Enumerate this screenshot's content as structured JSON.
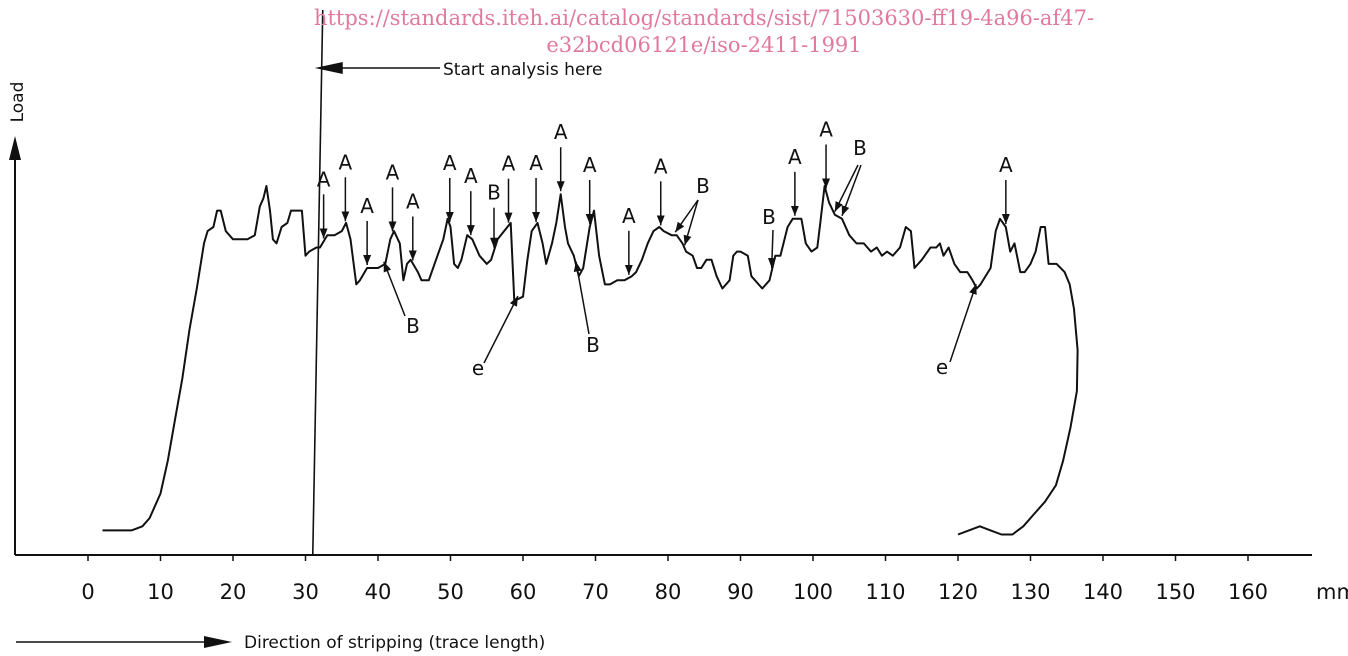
{
  "watermark": {
    "line1": "https://standards.iteh.ai/catalog/standards/sist/71503630-ff19-4a96-af47-",
    "line2": "e32bcd06121e/iso-2411-1991"
  },
  "colors": {
    "ink": "#111111",
    "watermark": "#e07a9a"
  },
  "chart_data": {
    "type": "line",
    "ylabel": "Load",
    "xlabel": "Direction of stripping (trace length)",
    "x_unit": "mm",
    "xlim": [
      -10,
      168
    ],
    "ylim": [
      0,
      100
    ],
    "x_ticks": [
      0,
      10,
      20,
      30,
      40,
      50,
      60,
      70,
      80,
      90,
      100,
      110,
      120,
      130,
      140,
      150,
      160
    ],
    "x_tick_labels": [
      "0",
      "10",
      "20",
      "30",
      "40",
      "50",
      "60",
      "70",
      "80",
      "90",
      "100",
      "110",
      "120",
      "130",
      "140",
      "150",
      "160"
    ],
    "grid": false,
    "start_line_x": 31,
    "start_label": "Start analysis here",
    "trace": [
      [
        2,
        6
      ],
      [
        4,
        6
      ],
      [
        6,
        6
      ],
      [
        7.5,
        7
      ],
      [
        8.5,
        9
      ],
      [
        10,
        15
      ],
      [
        11,
        23
      ],
      [
        12,
        33
      ],
      [
        13,
        43
      ],
      [
        14,
        55
      ],
      [
        15,
        65
      ],
      [
        16,
        76
      ],
      [
        16.5,
        79
      ],
      [
        17.3,
        80
      ],
      [
        17.8,
        84
      ],
      [
        18.3,
        84
      ],
      [
        19,
        79
      ],
      [
        20,
        77
      ],
      [
        21,
        77
      ],
      [
        22,
        77
      ],
      [
        23,
        78
      ],
      [
        23.7,
        85
      ],
      [
        24.2,
        87
      ],
      [
        24.6,
        90
      ],
      [
        25.1,
        84
      ],
      [
        25.5,
        77
      ],
      [
        26,
        76
      ],
      [
        26.7,
        80
      ],
      [
        27.5,
        81
      ],
      [
        28,
        84
      ],
      [
        28.8,
        84
      ],
      [
        29.5,
        84
      ],
      [
        30,
        73
      ],
      [
        30.5,
        74
      ],
      [
        31.5,
        75
      ],
      [
        32,
        75
      ],
      [
        33,
        78
      ],
      [
        34,
        78
      ],
      [
        35,
        79
      ],
      [
        35.6,
        81
      ],
      [
        36.2,
        77
      ],
      [
        37,
        66
      ],
      [
        37.5,
        67
      ],
      [
        38.5,
        70
      ],
      [
        39.2,
        70
      ],
      [
        40,
        70
      ],
      [
        41,
        71
      ],
      [
        41.7,
        77
      ],
      [
        42.2,
        79
      ],
      [
        43,
        76
      ],
      [
        43.5,
        67
      ],
      [
        44,
        71
      ],
      [
        44.5,
        72
      ],
      [
        45.5,
        69
      ],
      [
        46,
        67
      ],
      [
        47,
        67
      ],
      [
        48,
        72
      ],
      [
        49,
        77
      ],
      [
        49.6,
        82
      ],
      [
        50,
        80
      ],
      [
        50.5,
        71
      ],
      [
        51,
        70
      ],
      [
        51.5,
        72
      ],
      [
        52.3,
        78
      ],
      [
        53,
        77
      ],
      [
        54,
        73
      ],
      [
        55,
        71
      ],
      [
        55.6,
        72
      ],
      [
        56.5,
        77
      ],
      [
        57.4,
        79
      ],
      [
        58.3,
        81
      ],
      [
        58.8,
        62
      ],
      [
        60,
        63
      ],
      [
        60.6,
        72
      ],
      [
        61.2,
        79
      ],
      [
        62,
        81
      ],
      [
        62.7,
        76
      ],
      [
        63.2,
        71
      ],
      [
        64,
        76
      ],
      [
        64.6,
        81
      ],
      [
        65.2,
        88
      ],
      [
        65.8,
        80
      ],
      [
        66.2,
        76
      ],
      [
        67,
        73
      ],
      [
        67.7,
        68
      ],
      [
        68.3,
        70
      ],
      [
        69.2,
        80
      ],
      [
        69.8,
        84
      ],
      [
        70.5,
        73
      ],
      [
        71.3,
        66
      ],
      [
        72,
        66
      ],
      [
        73,
        67
      ],
      [
        74,
        67
      ],
      [
        75,
        68
      ],
      [
        75.6,
        69
      ],
      [
        76.4,
        72
      ],
      [
        77.2,
        76
      ],
      [
        78,
        79
      ],
      [
        78.8,
        80
      ],
      [
        79.4,
        79
      ],
      [
        80.5,
        78
      ],
      [
        81.2,
        78
      ],
      [
        82,
        76
      ],
      [
        82.5,
        74
      ],
      [
        83.4,
        73
      ],
      [
        84,
        70
      ],
      [
        84.6,
        70
      ],
      [
        85.3,
        72
      ],
      [
        86,
        72
      ],
      [
        86.7,
        68
      ],
      [
        87.5,
        65
      ],
      [
        88.5,
        67
      ],
      [
        89,
        73
      ],
      [
        89.5,
        74
      ],
      [
        90,
        74
      ],
      [
        91,
        73
      ],
      [
        91.5,
        68
      ],
      [
        92.5,
        66
      ],
      [
        93,
        65
      ],
      [
        94,
        67
      ],
      [
        94.8,
        73
      ],
      [
        95.5,
        73
      ],
      [
        96.5,
        80
      ],
      [
        97.2,
        82
      ],
      [
        98.4,
        82
      ],
      [
        99,
        76
      ],
      [
        99.8,
        74
      ],
      [
        100.6,
        75
      ],
      [
        101,
        81
      ],
      [
        101.6,
        90
      ],
      [
        102.2,
        86
      ],
      [
        103,
        83
      ],
      [
        104,
        82
      ],
      [
        105,
        78
      ],
      [
        106,
        76
      ],
      [
        107,
        76
      ],
      [
        108,
        74
      ],
      [
        108.8,
        75
      ],
      [
        109.5,
        73
      ],
      [
        110.2,
        74
      ],
      [
        111,
        73
      ],
      [
        112,
        75
      ],
      [
        112.8,
        80
      ],
      [
        113.5,
        79
      ],
      [
        114,
        70
      ],
      [
        115,
        72
      ],
      [
        116.2,
        75
      ],
      [
        117,
        75
      ],
      [
        117.5,
        76
      ],
      [
        118,
        73
      ],
      [
        118.7,
        75
      ],
      [
        119.5,
        71
      ],
      [
        120.3,
        69
      ],
      [
        121.3,
        69
      ],
      [
        122,
        67
      ],
      [
        122.6,
        65
      ],
      [
        123.1,
        66
      ],
      [
        124.5,
        70
      ],
      [
        125.2,
        79
      ],
      [
        125.8,
        82
      ],
      [
        126.6,
        80
      ],
      [
        127.2,
        74
      ],
      [
        127.8,
        76
      ],
      [
        128.6,
        69
      ],
      [
        129.2,
        69
      ],
      [
        130,
        71
      ],
      [
        130.7,
        74
      ],
      [
        131.4,
        80
      ],
      [
        132,
        80
      ],
      [
        132.5,
        71
      ],
      [
        133.6,
        71
      ],
      [
        134.7,
        69
      ],
      [
        135.4,
        66
      ],
      [
        136,
        60
      ],
      [
        136.5,
        50
      ],
      [
        136.4,
        40
      ],
      [
        135.5,
        31
      ],
      [
        134.5,
        23
      ],
      [
        133.5,
        17
      ],
      [
        132,
        13
      ],
      [
        130.5,
        10
      ],
      [
        129,
        7
      ],
      [
        127.5,
        5
      ],
      [
        126,
        5
      ],
      [
        124.5,
        6
      ],
      [
        123,
        7
      ],
      [
        121.5,
        6
      ],
      [
        120,
        5
      ]
    ],
    "annotations": [
      {
        "label": "A",
        "x": 32.5
      },
      {
        "label": "A",
        "x": 35.5
      },
      {
        "label": "A",
        "x": 38.5
      },
      {
        "label": "A",
        "x": 42
      },
      {
        "label": "A",
        "x": 44.8
      },
      {
        "label": "B",
        "x": 40.8
      },
      {
        "label": "A",
        "x": 49.9
      },
      {
        "label": "A",
        "x": 52.8
      },
      {
        "label": "B",
        "x": 56
      },
      {
        "label": "A",
        "x": 58
      },
      {
        "label": "A",
        "x": 61.8
      },
      {
        "label": "A",
        "x": 65.2
      },
      {
        "label": "A",
        "x": 69.2
      },
      {
        "label": "B",
        "x": 67.3
      },
      {
        "label": "A",
        "x": 74.6
      },
      {
        "label": "A",
        "x": 79
      },
      {
        "label": "B",
        "x": 81
      },
      {
        "label": "B",
        "x": 82.3
      },
      {
        "label": "B",
        "x": 94.3
      },
      {
        "label": "A",
        "x": 97.5
      },
      {
        "label": "A",
        "x": 101.8
      },
      {
        "label": "B",
        "x": 103
      },
      {
        "label": "B",
        "x": 104
      },
      {
        "label": "A",
        "x": 126.6
      },
      {
        "label": "e",
        "x": 59.3
      },
      {
        "label": "e",
        "x": 122.5
      }
    ]
  }
}
